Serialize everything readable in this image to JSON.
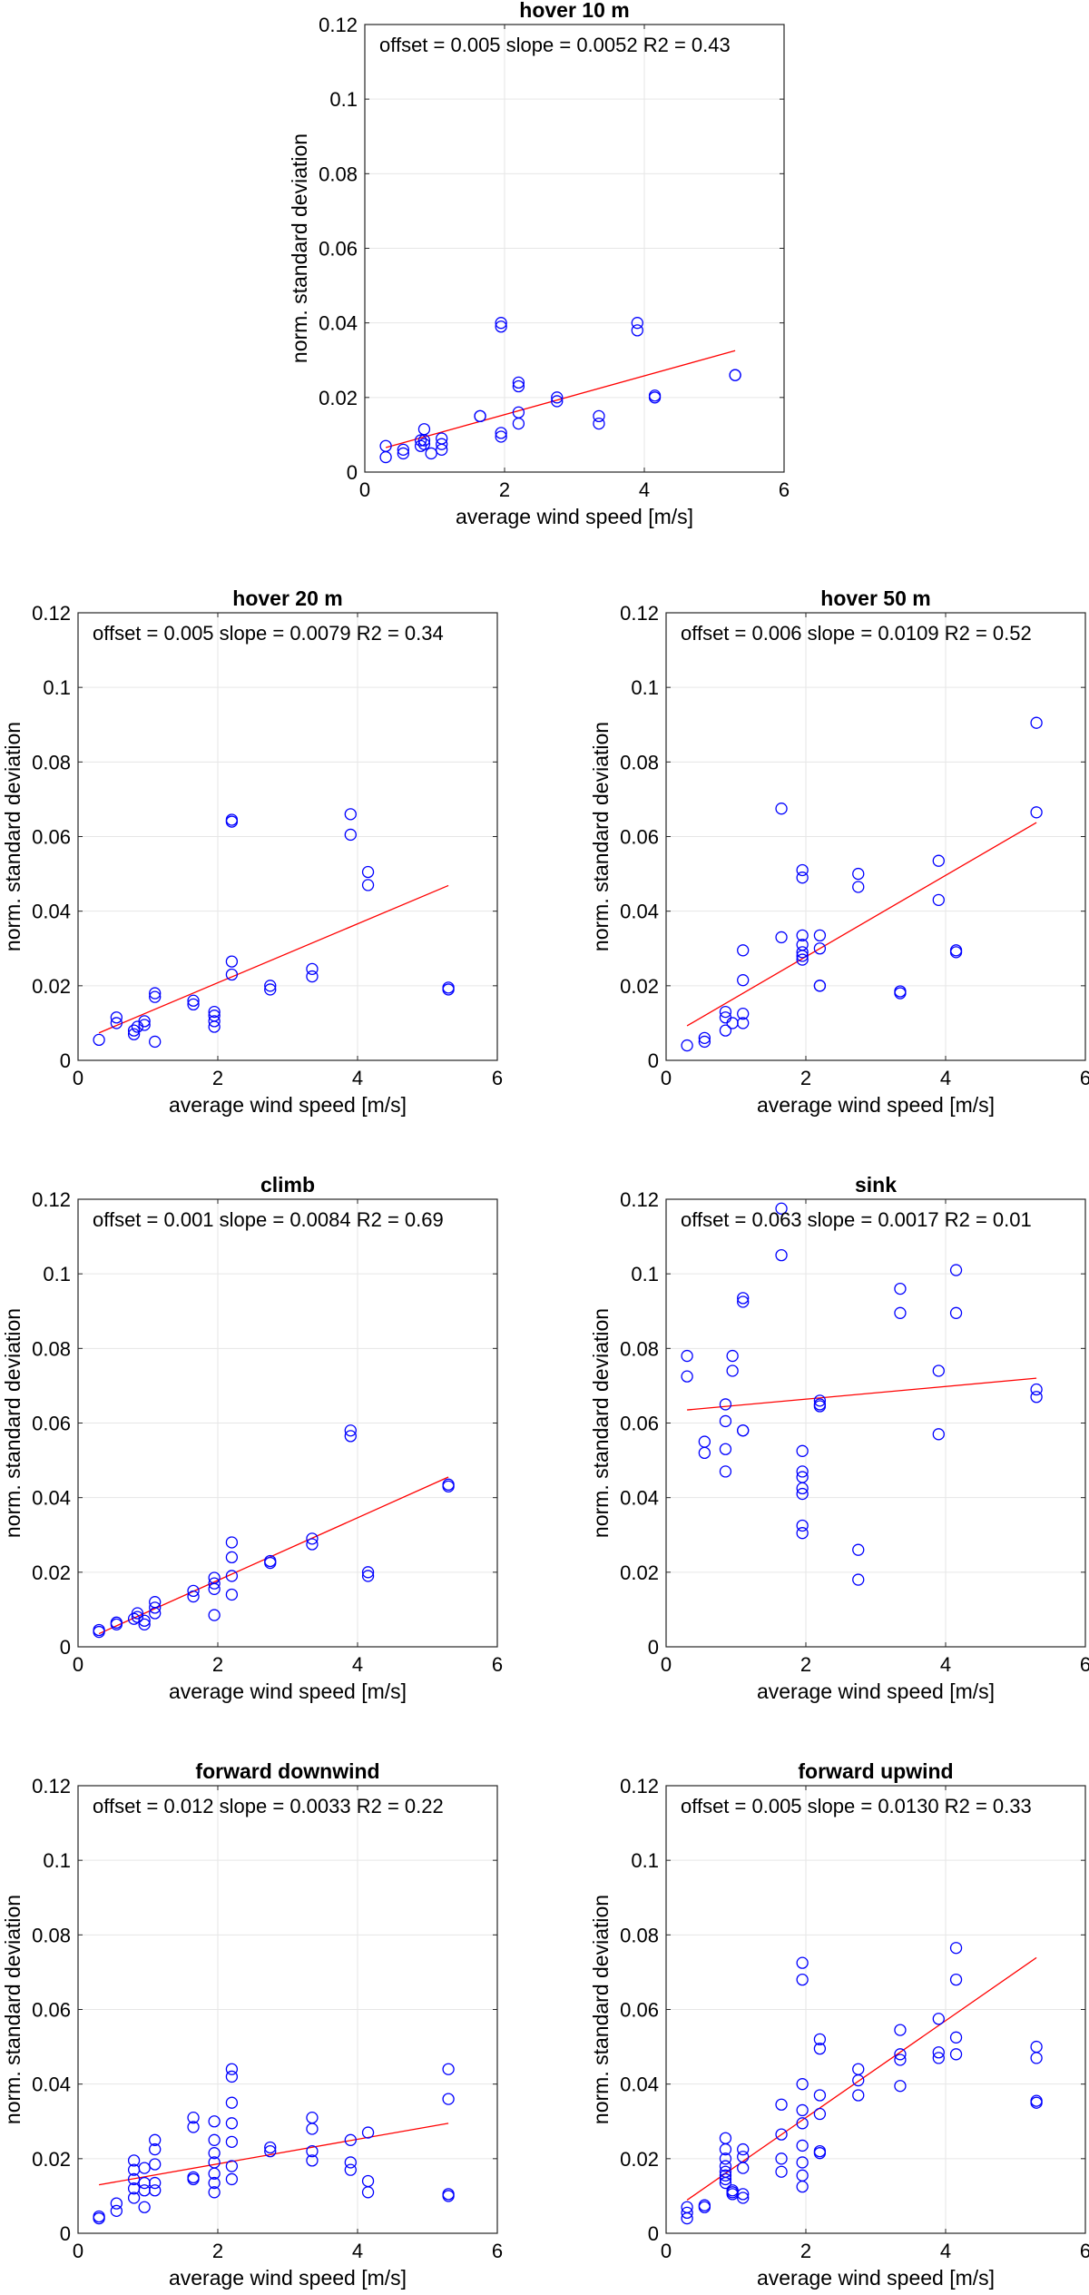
{
  "chart_data": [
    {
      "type": "scatter",
      "title": "hover 10 m",
      "annotation": "offset = 0.005 slope = 0.0052  R2 = 0.43",
      "xlabel": "average wind speed [m/s]",
      "ylabel": "norm. standard deviation",
      "xlim": [
        0,
        6
      ],
      "ylim": [
        0,
        0.12
      ],
      "xticks": [
        "0",
        "2",
        "4",
        "6"
      ],
      "yticks": [
        "0",
        "0.02",
        "0.04",
        "0.06",
        "0.08",
        "0.1",
        "0.12"
      ],
      "grid": true,
      "marker_color": "#0000ff",
      "fit_color": "#ff0000",
      "fit": {
        "offset": 0.005,
        "slope": 0.0052,
        "x_range": [
          0.3,
          5.3
        ]
      },
      "x": [
        0.3,
        0.3,
        0.55,
        0.55,
        0.8,
        0.8,
        0.85,
        0.85,
        0.85,
        0.95,
        1.1,
        1.1,
        1.1,
        1.65,
        1.65,
        1.95,
        1.95,
        1.95,
        1.95,
        2.2,
        2.2,
        2.2,
        2.2,
        2.75,
        2.75,
        3.35,
        3.35,
        3.9,
        3.9,
        4.15,
        4.15,
        5.3,
        5.3
      ],
      "y": [
        0.004,
        0.007,
        0.005,
        0.006,
        0.007,
        0.0085,
        0.0075,
        0.0085,
        0.0115,
        0.005,
        0.006,
        0.0075,
        0.009,
        0.015,
        0.015,
        0.0095,
        0.0105,
        0.039,
        0.04,
        0.013,
        0.016,
        0.023,
        0.024,
        0.019,
        0.02,
        0.013,
        0.015,
        0.038,
        0.04,
        0.02,
        0.0205,
        0.026,
        0.026
      ]
    },
    {
      "type": "scatter",
      "title": "hover 20 m",
      "annotation": "offset = 0.005 slope = 0.0079  R2 = 0.34",
      "xlabel": "average wind speed [m/s]",
      "ylabel": "norm. standard deviation",
      "xlim": [
        0,
        6
      ],
      "ylim": [
        0,
        0.12
      ],
      "xticks": [
        "0",
        "2",
        "4",
        "6"
      ],
      "yticks": [
        "0",
        "0.02",
        "0.04",
        "0.06",
        "0.08",
        "0.1",
        "0.12"
      ],
      "grid": true,
      "marker_color": "#0000ff",
      "fit_color": "#ff0000",
      "fit": {
        "offset": 0.005,
        "slope": 0.0079,
        "x_range": [
          0.3,
          5.3
        ]
      },
      "x": [
        0.3,
        0.55,
        0.55,
        0.8,
        0.8,
        0.85,
        0.95,
        0.95,
        1.1,
        1.1,
        1.1,
        1.65,
        1.65,
        1.95,
        1.95,
        1.95,
        1.95,
        2.2,
        2.2,
        2.2,
        2.2,
        2.75,
        2.75,
        3.35,
        3.35,
        3.9,
        3.9,
        4.15,
        4.15,
        5.3,
        5.3
      ],
      "y": [
        0.0055,
        0.01,
        0.0115,
        0.007,
        0.008,
        0.009,
        0.0095,
        0.0105,
        0.005,
        0.017,
        0.018,
        0.015,
        0.016,
        0.009,
        0.0105,
        0.012,
        0.013,
        0.023,
        0.0265,
        0.064,
        0.0645,
        0.019,
        0.02,
        0.0225,
        0.0245,
        0.0605,
        0.066,
        0.047,
        0.0505,
        0.019,
        0.0195
      ]
    },
    {
      "type": "scatter",
      "title": "hover 50 m",
      "annotation": "offset = 0.006 slope = 0.0109  R2 = 0.52",
      "xlabel": "average wind speed [m/s]",
      "ylabel": "norm. standard deviation",
      "xlim": [
        0,
        6
      ],
      "ylim": [
        0,
        0.12
      ],
      "xticks": [
        "0",
        "2",
        "4",
        "6"
      ],
      "yticks": [
        "0",
        "0.02",
        "0.04",
        "0.06",
        "0.08",
        "0.1",
        "0.12"
      ],
      "grid": true,
      "marker_color": "#0000ff",
      "fit_color": "#ff0000",
      "fit": {
        "offset": 0.006,
        "slope": 0.0109,
        "x_range": [
          0.3,
          5.3
        ]
      },
      "x": [
        0.3,
        0.55,
        0.55,
        0.85,
        0.85,
        0.85,
        0.95,
        1.1,
        1.1,
        1.1,
        1.1,
        1.65,
        1.65,
        1.95,
        1.95,
        1.95,
        1.95,
        1.95,
        1.95,
        1.95,
        2.2,
        2.2,
        2.2,
        2.2,
        2.75,
        2.75,
        3.35,
        3.35,
        3.9,
        3.9,
        4.15,
        4.15,
        5.3,
        5.3
      ],
      "y": [
        0.004,
        0.005,
        0.006,
        0.008,
        0.0115,
        0.013,
        0.01,
        0.01,
        0.0125,
        0.0215,
        0.0295,
        0.033,
        0.0675,
        0.027,
        0.029,
        0.031,
        0.0335,
        0.049,
        0.051,
        0.028,
        0.02,
        0.02,
        0.03,
        0.0335,
        0.0465,
        0.05,
        0.018,
        0.0185,
        0.043,
        0.0535,
        0.029,
        0.0295,
        0.0665,
        0.0905
      ]
    },
    {
      "type": "scatter",
      "title": "climb",
      "annotation": "offset = 0.001 slope = 0.0084  R2 = 0.69",
      "xlabel": "average wind speed [m/s]",
      "ylabel": "norm. standard deviation",
      "xlim": [
        0,
        6
      ],
      "ylim": [
        0,
        0.12
      ],
      "xticks": [
        "0",
        "2",
        "4",
        "6"
      ],
      "yticks": [
        "0",
        "0.02",
        "0.04",
        "0.06",
        "0.08",
        "0.1",
        "0.12"
      ],
      "grid": true,
      "marker_color": "#0000ff",
      "fit_color": "#ff0000",
      "fit": {
        "offset": 0.001,
        "slope": 0.0084,
        "x_range": [
          0.3,
          5.3
        ]
      },
      "x": [
        0.3,
        0.3,
        0.55,
        0.55,
        0.8,
        0.85,
        0.85,
        0.95,
        0.95,
        1.1,
        1.1,
        1.1,
        1.65,
        1.65,
        1.95,
        1.95,
        1.95,
        1.95,
        2.2,
        2.2,
        2.2,
        2.2,
        2.75,
        2.75,
        3.35,
        3.35,
        3.9,
        3.9,
        4.15,
        4.15,
        5.3,
        5.3
      ],
      "y": [
        0.004,
        0.0045,
        0.006,
        0.0065,
        0.0075,
        0.008,
        0.009,
        0.006,
        0.007,
        0.009,
        0.0105,
        0.012,
        0.0135,
        0.015,
        0.0085,
        0.0155,
        0.017,
        0.0185,
        0.014,
        0.019,
        0.024,
        0.028,
        0.0225,
        0.023,
        0.0275,
        0.029,
        0.0565,
        0.058,
        0.019,
        0.02,
        0.043,
        0.0435
      ]
    },
    {
      "type": "scatter",
      "title": "sink",
      "annotation": "offset = 0.063 slope = 0.0017  R2 = 0.01",
      "xlabel": "average wind speed [m/s]",
      "ylabel": "norm. standard deviation",
      "xlim": [
        0,
        6
      ],
      "ylim": [
        0,
        0.12
      ],
      "xticks": [
        "0",
        "2",
        "4",
        "6"
      ],
      "yticks": [
        "0",
        "0.02",
        "0.04",
        "0.06",
        "0.08",
        "0.1",
        "0.12"
      ],
      "grid": true,
      "marker_color": "#0000ff",
      "fit_color": "#ff0000",
      "fit": {
        "offset": 0.063,
        "slope": 0.0017,
        "x_range": [
          0.3,
          5.3
        ]
      },
      "x": [
        0.3,
        0.3,
        0.55,
        0.55,
        0.85,
        0.85,
        0.85,
        0.85,
        0.95,
        0.95,
        1.1,
        1.1,
        1.1,
        1.1,
        1.65,
        1.65,
        1.95,
        1.95,
        1.95,
        1.95,
        1.95,
        1.95,
        1.95,
        2.2,
        2.2,
        2.2,
        2.75,
        2.75,
        3.35,
        3.35,
        3.9,
        3.9,
        4.15,
        4.15,
        5.3,
        5.3
      ],
      "y": [
        0.0725,
        0.078,
        0.052,
        0.055,
        0.047,
        0.053,
        0.0605,
        0.065,
        0.074,
        0.078,
        0.058,
        0.058,
        0.0925,
        0.0935,
        0.105,
        0.1175,
        0.041,
        0.0425,
        0.0455,
        0.047,
        0.0525,
        0.0305,
        0.0325,
        0.0645,
        0.065,
        0.066,
        0.018,
        0.026,
        0.0895,
        0.096,
        0.057,
        0.074,
        0.0895,
        0.101,
        0.067,
        0.069
      ]
    },
    {
      "type": "scatter",
      "title": "forward downwind",
      "annotation": "offset = 0.012 slope = 0.0033  R2 = 0.22",
      "xlabel": "average wind speed [m/s]",
      "ylabel": "norm. standard deviation",
      "xlim": [
        0,
        6
      ],
      "ylim": [
        0,
        0.12
      ],
      "xticks": [
        "0",
        "2",
        "4",
        "6"
      ],
      "yticks": [
        "0",
        "0.02",
        "0.04",
        "0.06",
        "0.08",
        "0.1",
        "0.12"
      ],
      "grid": true,
      "marker_color": "#0000ff",
      "fit_color": "#ff0000",
      "fit": {
        "offset": 0.012,
        "slope": 0.0033,
        "x_range": [
          0.3,
          5.3
        ]
      },
      "x": [
        0.3,
        0.3,
        0.55,
        0.55,
        0.8,
        0.8,
        0.8,
        0.8,
        0.8,
        0.95,
        0.95,
        0.95,
        0.95,
        1.1,
        1.1,
        1.1,
        1.1,
        1.1,
        1.65,
        1.65,
        1.65,
        1.65,
        1.95,
        1.95,
        1.95,
        1.95,
        1.95,
        1.95,
        1.95,
        2.2,
        2.2,
        2.2,
        2.2,
        2.2,
        2.2,
        2.2,
        2.75,
        2.75,
        3.35,
        3.35,
        3.35,
        3.35,
        3.9,
        3.9,
        3.9,
        4.15,
        4.15,
        4.15,
        5.3,
        5.3,
        5.3,
        5.3
      ],
      "y": [
        0.004,
        0.0045,
        0.006,
        0.008,
        0.0095,
        0.012,
        0.0145,
        0.017,
        0.0195,
        0.007,
        0.0115,
        0.0135,
        0.0175,
        0.0115,
        0.0135,
        0.0185,
        0.0225,
        0.025,
        0.0145,
        0.015,
        0.0285,
        0.031,
        0.011,
        0.0135,
        0.016,
        0.019,
        0.0215,
        0.025,
        0.03,
        0.0145,
        0.018,
        0.0245,
        0.0295,
        0.035,
        0.042,
        0.044,
        0.022,
        0.023,
        0.0195,
        0.022,
        0.028,
        0.031,
        0.017,
        0.019,
        0.025,
        0.011,
        0.014,
        0.027,
        0.01,
        0.0105,
        0.036,
        0.044
      ]
    },
    {
      "type": "scatter",
      "title": "forward upwind",
      "annotation": "offset = 0.005 slope = 0.0130  R2 = 0.33",
      "xlabel": "average wind speed [m/s]",
      "ylabel": "norm. standard deviation",
      "xlim": [
        0,
        6
      ],
      "ylim": [
        0,
        0.12
      ],
      "xticks": [
        "0",
        "2",
        "4",
        "6"
      ],
      "yticks": [
        "0",
        "0.02",
        "0.04",
        "0.06",
        "0.08",
        "0.1",
        "0.12"
      ],
      "grid": true,
      "marker_color": "#0000ff",
      "fit_color": "#ff0000",
      "fit": {
        "offset": 0.005,
        "slope": 0.013,
        "x_range": [
          0.3,
          5.3
        ]
      },
      "x": [
        0.3,
        0.3,
        0.3,
        0.55,
        0.55,
        0.85,
        0.85,
        0.85,
        0.85,
        0.85,
        0.85,
        0.85,
        0.85,
        0.95,
        0.95,
        0.95,
        1.1,
        1.1,
        1.1,
        1.1,
        1.1,
        1.65,
        1.65,
        1.65,
        1.65,
        1.95,
        1.95,
        1.95,
        1.95,
        1.95,
        1.95,
        1.95,
        1.95,
        1.95,
        2.2,
        2.2,
        2.2,
        2.2,
        2.2,
        2.2,
        2.75,
        2.75,
        2.75,
        3.35,
        3.35,
        3.35,
        3.35,
        3.9,
        3.9,
        3.9,
        4.15,
        4.15,
        4.15,
        4.15,
        5.3,
        5.3,
        5.3,
        5.3
      ],
      "y": [
        0.004,
        0.0055,
        0.007,
        0.007,
        0.0075,
        0.0135,
        0.0145,
        0.0155,
        0.0165,
        0.018,
        0.02,
        0.0225,
        0.0255,
        0.0105,
        0.011,
        0.0115,
        0.0095,
        0.0105,
        0.0175,
        0.0205,
        0.0225,
        0.0165,
        0.02,
        0.0265,
        0.0345,
        0.0125,
        0.0155,
        0.019,
        0.0235,
        0.0295,
        0.033,
        0.04,
        0.068,
        0.0725,
        0.0215,
        0.022,
        0.032,
        0.037,
        0.0495,
        0.052,
        0.037,
        0.041,
        0.044,
        0.0395,
        0.0465,
        0.048,
        0.0545,
        0.047,
        0.0485,
        0.0575,
        0.048,
        0.0525,
        0.068,
        0.0765,
        0.035,
        0.0355,
        0.047,
        0.05
      ]
    }
  ]
}
